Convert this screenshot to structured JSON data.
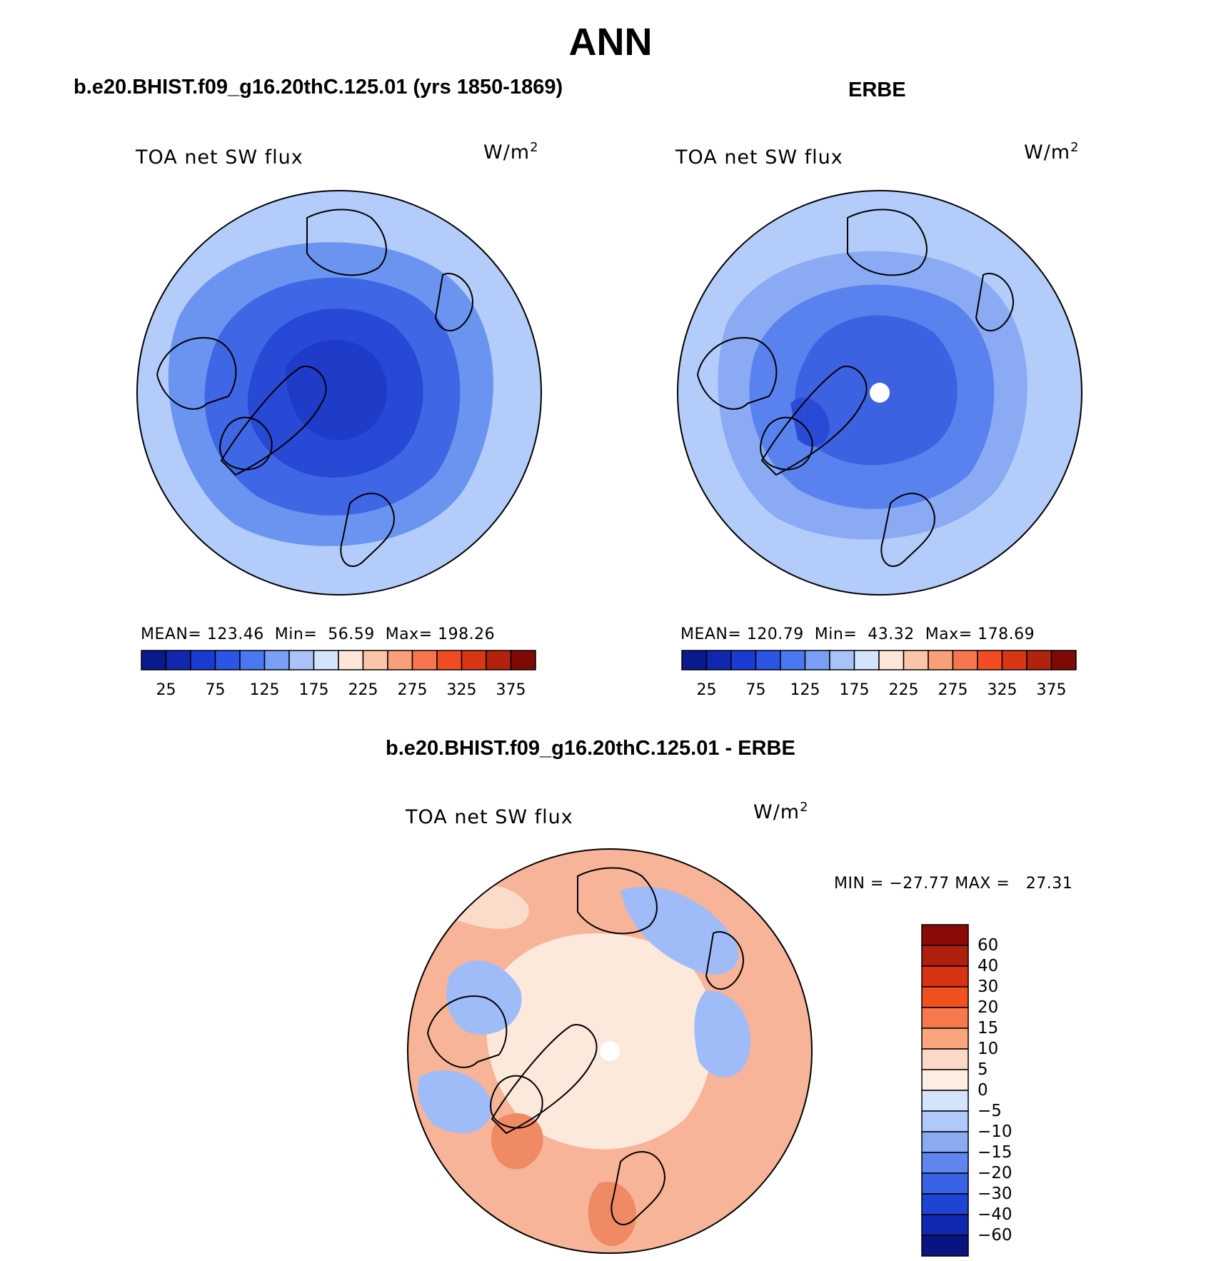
{
  "figure": {
    "title": "ANN"
  },
  "panels": [
    {
      "title": "b.e20.BHIST.f09_g16.20thC.125.01 (yrs 1850-1869)",
      "label": "TOA net SW flux",
      "units": "W/m",
      "units_sup": "2",
      "stats": "MEAN= 123.46  Min=  56.59  Max= 198.26",
      "colorbar_ticks": [
        "25",
        "75",
        "125",
        "175",
        "225",
        "275",
        "325",
        "375"
      ],
      "fill": {
        "outer": "#b4ccfa",
        "mid": "#6b94f0",
        "inner": "#3f66e5",
        "core": "#2848d6",
        "pole": "#1e3cc7"
      }
    },
    {
      "title": "ERBE",
      "label": "TOA net SW flux",
      "units": "W/m",
      "units_sup": "2",
      "stats": "MEAN= 120.79  Min=  43.32  Max= 178.69",
      "colorbar_ticks": [
        "25",
        "75",
        "125",
        "175",
        "225",
        "275",
        "325",
        "375"
      ],
      "fill": {
        "outer": "#b4ccfa",
        "mid": "#8aaaf4",
        "inner": "#5a82ee",
        "core": "#3c62e2",
        "pole": "#2a4ad6"
      }
    }
  ],
  "diff_panel": {
    "title": "b.e20.BHIST.f09_g16.20thC.125.01 - ERBE",
    "label": "TOA net SW flux",
    "units": "W/m",
    "units_sup": "2",
    "stats": "MIN = −27.77 MAX =   27.31",
    "colorbar_labels": [
      "60",
      "40",
      "30",
      "20",
      "15",
      "10",
      "5",
      "0",
      "−5",
      "−10",
      "−15",
      "−20",
      "−30",
      "−40",
      "−60"
    ]
  },
  "horizontal_colorbar_colors": [
    "#0a1a8c",
    "#1028b0",
    "#1a3cd2",
    "#2a55e6",
    "#4a78f0",
    "#7a9ef5",
    "#a9c3fa",
    "#d4e4fc",
    "#fde6d8",
    "#fbc6a8",
    "#f9a07a",
    "#f7764e",
    "#f24d22",
    "#d93614",
    "#b3220d",
    "#7f0a05"
  ],
  "vertical_colorbar_colors": [
    "#8c0a06",
    "#b01e0c",
    "#d73214",
    "#f2501f",
    "#f8794d",
    "#fba57f",
    "#fcd9c6",
    "#fdeee3",
    "#d4e4fc",
    "#b1c9fa",
    "#8aaaf4",
    "#5f86ee",
    "#3a62e4",
    "#1e44d4",
    "#1028b0",
    "#0a1480"
  ],
  "diff_fill": {
    "base": "#f7b498",
    "warm": "#f08a64",
    "cool": "#9fbcf8",
    "pale": "#fbdccb",
    "neutral": "#fde9dc"
  }
}
